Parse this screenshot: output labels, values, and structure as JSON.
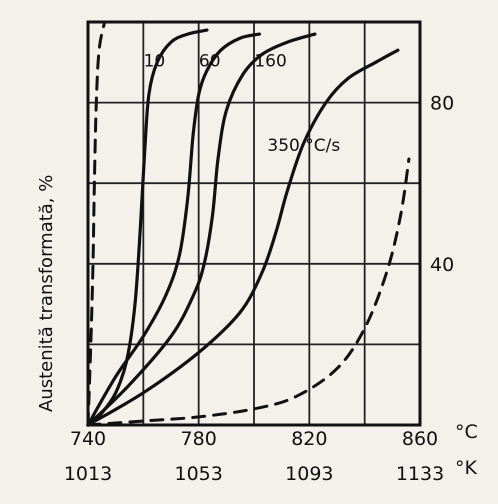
{
  "chart_data": {
    "type": "line",
    "title": "",
    "xlabel_c_unit": "°C",
    "xlabel_k_unit": "°K",
    "ylabel": "Austenită  transformată, %",
    "x_ticks_c": [
      "740",
      "780",
      "820",
      "860"
    ],
    "x_ticks_k": [
      "1013",
      "1053",
      "1093",
      "1133"
    ],
    "y_ticks": [
      "40",
      "80"
    ],
    "xlim": [
      740,
      860
    ],
    "ylim": [
      0,
      100
    ],
    "grid": true,
    "series": [
      {
        "name": "10",
        "style": "solid",
        "x": [
          740,
          745,
          750,
          754,
          757,
          759,
          760.5,
          762,
          765,
          770,
          776,
          783
        ],
        "y": [
          0,
          3,
          8,
          16,
          30,
          50,
          68,
          82,
          90,
          95,
          97,
          98
        ]
      },
      {
        "name": "60",
        "style": "solid",
        "x": [
          740,
          750,
          760,
          768,
          773,
          776,
          778,
          780,
          783,
          788,
          795,
          802
        ],
        "y": [
          0,
          12,
          22,
          32,
          42,
          56,
          72,
          82,
          88,
          93,
          96,
          97
        ]
      },
      {
        "name": "160",
        "style": "solid",
        "x": [
          740,
          755,
          770,
          778,
          782,
          785,
          787,
          790,
          796,
          803,
          812,
          822
        ],
        "y": [
          0,
          10,
          22,
          32,
          40,
          52,
          66,
          78,
          87,
          92,
          95,
          97
        ]
      },
      {
        "name": "350",
        "style": "solid",
        "x": [
          740,
          760,
          780,
          795,
          803,
          808,
          812,
          818,
          826,
          834,
          844,
          852
        ],
        "y": [
          0,
          8,
          18,
          28,
          38,
          48,
          58,
          70,
          80,
          86,
          90,
          93
        ]
      },
      {
        "name": "",
        "style": "dashed",
        "x": [
          740,
          741,
          741.8,
          742.3,
          743,
          744,
          746
        ],
        "y": [
          0,
          20,
          40,
          60,
          80,
          93,
          100
        ]
      },
      {
        "name": "",
        "style": "dashed",
        "x": [
          740,
          760,
          780,
          800,
          815,
          830,
          840,
          848,
          853,
          856
        ],
        "y": [
          0,
          1,
          2,
          4,
          7,
          14,
          24,
          38,
          52,
          66
        ]
      }
    ],
    "annotations": [
      {
        "text": "10",
        "x": 764,
        "y": 89
      },
      {
        "text": "60",
        "x": 784,
        "y": 89
      },
      {
        "text": "160",
        "x": 806,
        "y": 89
      },
      {
        "text": "350 °C/s",
        "x": 818,
        "y": 68
      }
    ]
  }
}
